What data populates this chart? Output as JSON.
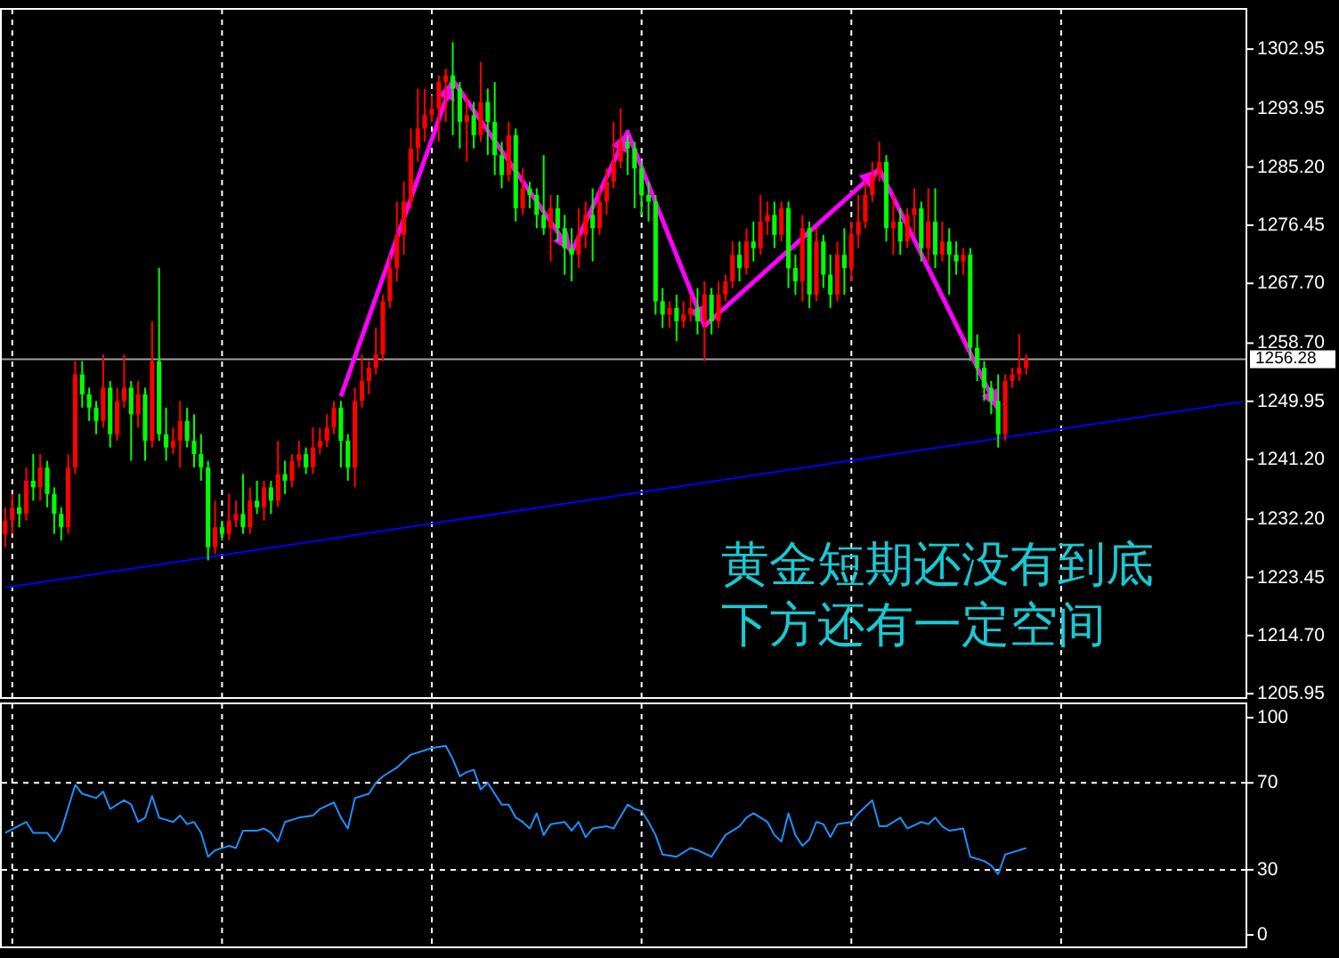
{
  "chart_data": [
    {
      "type": "candlestick",
      "categories": [
        null,
        null,
        null,
        null,
        null,
        null,
        null,
        null,
        null,
        null,
        null,
        null,
        null,
        null,
        null,
        null,
        null,
        null,
        null,
        null,
        null,
        null,
        null,
        null,
        null,
        null,
        null,
        null,
        null,
        null,
        null,
        null,
        null,
        null,
        null,
        null,
        null,
        null,
        null,
        null,
        null,
        null,
        null,
        null,
        null,
        null,
        null,
        null,
        null,
        null,
        null,
        null,
        null,
        null,
        null,
        null,
        null,
        null,
        null,
        null,
        null,
        null,
        null,
        null,
        null,
        null,
        null,
        null,
        null,
        null,
        null,
        null,
        null,
        null,
        null,
        null,
        null,
        null,
        null,
        null,
        null,
        null,
        null,
        null,
        null,
        null,
        null,
        null,
        null,
        null,
        null,
        null,
        null,
        null,
        null,
        null,
        null,
        null,
        null,
        null,
        null,
        null,
        null,
        null,
        null,
        null,
        null,
        null,
        null,
        null,
        null,
        null,
        null,
        null,
        null,
        null,
        null,
        null,
        null,
        null,
        null,
        null,
        null,
        null,
        null,
        null,
        null,
        null,
        null,
        null,
        null,
        null,
        null,
        null,
        null,
        null,
        null,
        null,
        null,
        null,
        null,
        null,
        null,
        null,
        null,
        null,
        null,
        null,
        null,
        null,
        null,
        null,
        null,
        null,
        null,
        null,
        null,
        null,
        null,
        null,
        null,
        null,
        null,
        null,
        null,
        null,
        null,
        null,
        null,
        null,
        null,
        null,
        null,
        null,
        null,
        null,
        null,
        null
      ],
      "ohlc": [
        [
          1230,
          1234,
          1228,
          1232
        ],
        [
          1232,
          1236,
          1230,
          1234
        ],
        [
          1234,
          1236,
          1231,
          1233
        ],
        [
          1233,
          1240,
          1232,
          1238
        ],
        [
          1238,
          1242,
          1235,
          1237
        ],
        [
          1237,
          1242,
          1235,
          1240
        ],
        [
          1240,
          1241,
          1234,
          1236
        ],
        [
          1236,
          1237,
          1230,
          1233
        ],
        [
          1233,
          1234,
          1229,
          1231
        ],
        [
          1231,
          1242,
          1230,
          1240
        ],
        [
          1240,
          1256,
          1239,
          1254
        ],
        [
          1254,
          1256,
          1249,
          1251
        ],
        [
          1251,
          1252,
          1247,
          1249
        ],
        [
          1249,
          1250,
          1245,
          1247
        ],
        [
          1247,
          1257,
          1246,
          1252
        ],
        [
          1252,
          1253,
          1243,
          1245
        ],
        [
          1245,
          1252,
          1244,
          1250
        ],
        [
          1250,
          1257,
          1249,
          1252
        ],
        [
          1252,
          1253,
          1241,
          1248
        ],
        [
          1248,
          1253,
          1246,
          1251
        ],
        [
          1251,
          1252,
          1241,
          1244
        ],
        [
          1244,
          1262,
          1243,
          1256
        ],
        [
          1256,
          1270,
          1244,
          1245
        ],
        [
          1245,
          1249,
          1241,
          1243
        ],
        [
          1243,
          1246,
          1242,
          1244
        ],
        [
          1244,
          1250,
          1240,
          1247
        ],
        [
          1247,
          1249,
          1243,
          1244
        ],
        [
          1244,
          1248,
          1240,
          1242
        ],
        [
          1242,
          1245,
          1238,
          1240
        ],
        [
          1240,
          1241,
          1226,
          1228
        ],
        [
          1228,
          1235,
          1227,
          1231
        ],
        [
          1231,
          1232,
          1229,
          1230
        ],
        [
          1230,
          1236,
          1229,
          1232
        ],
        [
          1232,
          1235,
          1231,
          1233
        ],
        [
          1233,
          1239,
          1230,
          1231
        ],
        [
          1231,
          1237,
          1230,
          1235
        ],
        [
          1235,
          1238,
          1233,
          1234
        ],
        [
          1234,
          1238,
          1232,
          1237
        ],
        [
          1237,
          1238,
          1233,
          1235
        ],
        [
          1235,
          1244,
          1234,
          1239
        ],
        [
          1239,
          1241,
          1236,
          1238
        ],
        [
          1238,
          1242,
          1237,
          1241
        ],
        [
          1241,
          1244,
          1240,
          1242
        ],
        [
          1242,
          1243,
          1239,
          1240
        ],
        [
          1240,
          1246,
          1239,
          1243
        ],
        [
          1243,
          1246,
          1242,
          1244
        ],
        [
          1244,
          1248,
          1243,
          1246
        ],
        [
          1246,
          1250,
          1245,
          1249
        ],
        [
          1249,
          1250,
          1240,
          1244
        ],
        [
          1244,
          1245,
          1238,
          1240
        ],
        [
          1240,
          1252,
          1237,
          1250
        ],
        [
          1250,
          1257,
          1249,
          1253
        ],
        [
          1253,
          1256,
          1251,
          1255
        ],
        [
          1255,
          1261,
          1254,
          1257
        ],
        [
          1257,
          1266,
          1256,
          1265
        ],
        [
          1265,
          1272,
          1264,
          1270
        ],
        [
          1270,
          1280,
          1268,
          1275
        ],
        [
          1275,
          1283,
          1272,
          1280
        ],
        [
          1280,
          1291,
          1279,
          1288
        ],
        [
          1288,
          1297,
          1286,
          1291
        ],
        [
          1291,
          1297,
          1289,
          1293
        ],
        [
          1293,
          1296,
          1292,
          1294
        ],
        [
          1294,
          1299,
          1289,
          1298
        ],
        [
          1298,
          1300,
          1292,
          1299
        ],
        [
          1299,
          1304,
          1290,
          1297
        ],
        [
          1297,
          1298,
          1288,
          1292
        ],
        [
          1292,
          1296,
          1286,
          1293
        ],
        [
          1293,
          1295,
          1288,
          1290
        ],
        [
          1290,
          1301,
          1289,
          1295
        ],
        [
          1295,
          1297,
          1287,
          1292
        ],
        [
          1292,
          1298,
          1284,
          1287
        ],
        [
          1287,
          1289,
          1282,
          1284
        ],
        [
          1284,
          1292,
          1283,
          1290
        ],
        [
          1290,
          1291,
          1277,
          1279
        ],
        [
          1279,
          1285,
          1278,
          1282
        ],
        [
          1282,
          1283,
          1279,
          1281
        ],
        [
          1281,
          1282,
          1276,
          1278
        ],
        [
          1278,
          1287,
          1275,
          1276
        ],
        [
          1276,
          1281,
          1271,
          1279
        ],
        [
          1279,
          1281,
          1274,
          1276
        ],
        [
          1276,
          1278,
          1269,
          1273
        ],
        [
          1273,
          1276,
          1268,
          1272
        ],
        [
          1272,
          1279,
          1270,
          1275
        ],
        [
          1275,
          1280,
          1273,
          1278
        ],
        [
          1278,
          1282,
          1271,
          1276
        ],
        [
          1276,
          1282,
          1275,
          1280
        ],
        [
          1280,
          1285,
          1278,
          1283
        ],
        [
          1283,
          1292,
          1282,
          1286
        ],
        [
          1286,
          1294,
          1285,
          1289
        ],
        [
          1289,
          1290,
          1284,
          1288
        ],
        [
          1288,
          1289,
          1279,
          1285
        ],
        [
          1285,
          1286,
          1278,
          1281
        ],
        [
          1281,
          1283,
          1277,
          1280
        ],
        [
          1280,
          1281,
          1263,
          1265
        ],
        [
          1265,
          1267,
          1261,
          1263
        ],
        [
          1263,
          1265,
          1261,
          1264
        ],
        [
          1264,
          1266,
          1259,
          1262
        ],
        [
          1262,
          1265,
          1261,
          1263
        ],
        [
          1263,
          1266,
          1262,
          1264
        ],
        [
          1264,
          1267,
          1260,
          1262
        ],
        [
          1262,
          1268,
          1256,
          1266
        ],
        [
          1266,
          1267,
          1260,
          1262
        ],
        [
          1262,
          1268,
          1261,
          1266
        ],
        [
          1266,
          1269,
          1265,
          1268
        ],
        [
          1268,
          1274,
          1267,
          1272
        ],
        [
          1272,
          1274,
          1268,
          1270
        ],
        [
          1270,
          1276,
          1269,
          1274
        ],
        [
          1274,
          1277,
          1271,
          1273
        ],
        [
          1273,
          1281,
          1272,
          1277
        ],
        [
          1277,
          1280,
          1275,
          1278
        ],
        [
          1278,
          1280,
          1273,
          1275
        ],
        [
          1275,
          1280,
          1274,
          1279
        ],
        [
          1279,
          1280,
          1267,
          1270
        ],
        [
          1270,
          1272,
          1266,
          1268
        ],
        [
          1268,
          1278,
          1265,
          1276
        ],
        [
          1276,
          1277,
          1264,
          1266
        ],
        [
          1266,
          1276,
          1265,
          1274
        ],
        [
          1274,
          1275,
          1267,
          1269
        ],
        [
          1269,
          1272,
          1264,
          1266
        ],
        [
          1266,
          1274,
          1265,
          1272
        ],
        [
          1272,
          1276,
          1266,
          1270
        ],
        [
          1270,
          1277,
          1268,
          1275
        ],
        [
          1275,
          1281,
          1273,
          1277
        ],
        [
          1277,
          1283,
          1276,
          1281
        ],
        [
          1281,
          1286,
          1280,
          1284
        ],
        [
          1284,
          1289,
          1283,
          1286
        ],
        [
          1286,
          1287,
          1274,
          1276
        ],
        [
          1276,
          1281,
          1272,
          1277
        ],
        [
          1277,
          1279,
          1272,
          1274
        ],
        [
          1274,
          1279,
          1273,
          1278
        ],
        [
          1278,
          1282,
          1275,
          1279
        ],
        [
          1279,
          1280,
          1271,
          1273
        ],
        [
          1273,
          1282,
          1271,
          1277
        ],
        [
          1277,
          1282,
          1270,
          1272
        ],
        [
          1272,
          1277,
          1271,
          1274
        ],
        [
          1274,
          1276,
          1266,
          1272
        ],
        [
          1272,
          1274,
          1269,
          1271
        ],
        [
          1271,
          1273,
          1269,
          1272
        ],
        [
          1272,
          1273,
          1256,
          1258
        ],
        [
          1258,
          1260,
          1253,
          1255
        ],
        [
          1255,
          1256,
          1250,
          1252
        ],
        [
          1252,
          1253,
          1248,
          1250
        ],
        [
          1250,
          1254,
          1243,
          1245
        ],
        [
          1245,
          1254,
          1244,
          1253
        ],
        [
          1253,
          1255,
          1252,
          1254
        ],
        [
          1254,
          1260,
          1253,
          1255
        ],
        [
          1255,
          1257,
          1254,
          1256.28
        ],
        null,
        null,
        null,
        null,
        null,
        null,
        null,
        null,
        null,
        null,
        null,
        null,
        null,
        null,
        null,
        null,
        null,
        null,
        null,
        null,
        null,
        null,
        null,
        null,
        null,
        null,
        null,
        null,
        null,
        null,
        null
      ],
      "colors": [
        "#ff0000",
        "#ff0000",
        "#00ff00",
        "#ff0000",
        "#00ff00",
        "#ff0000",
        "#00ff00",
        "#00ff00",
        "#00ff00",
        "#ff0000",
        "#ff0000",
        "#00ff00",
        "#00ff00",
        "#00ff00",
        "#ff0000",
        "#00ff00",
        "#ff0000",
        "#ff0000",
        "#00ff00",
        "#ff0000",
        "#00ff00",
        "#ff0000",
        "#00ff00",
        "#00ff00",
        "#ff0000",
        "#ff0000",
        "#00ff00",
        "#00ff00",
        "#00ff00",
        "#00ff00",
        "#ff0000",
        "#00ff00",
        "#ff0000",
        "#ff0000",
        "#00ff00",
        "#ff0000",
        "#00ff00",
        "#ff0000",
        "#00ff00",
        "#ff0000",
        "#00ff00",
        "#ff0000",
        "#ff0000",
        "#00ff00",
        "#ff0000",
        "#ff0000",
        "#ff0000",
        "#ff0000",
        "#00ff00",
        "#00ff00",
        "#ff0000",
        "#ff0000",
        "#ff0000",
        "#ff0000",
        "#ff0000",
        "#ff0000",
        "#ff0000",
        "#ff0000",
        "#ff0000",
        "#ff0000",
        "#ff0000",
        "#ff0000",
        "#ff0000",
        "#ff0000",
        "#00ff00",
        "#00ff00",
        "#ff0000",
        "#00ff00",
        "#ff0000",
        "#00ff00",
        "#00ff00",
        "#00ff00",
        "#ff0000",
        "#00ff00",
        "#ff0000",
        "#00ff00",
        "#00ff00",
        "#00ff00",
        "#ff0000",
        "#00ff00",
        "#00ff00",
        "#00ff00",
        "#ff0000",
        "#ff0000",
        "#00ff00",
        "#ff0000",
        "#ff0000",
        "#ff0000",
        "#ff0000",
        "#00ff00",
        "#00ff00",
        "#00ff00",
        "#00ff00",
        "#00ff00",
        "#00ff00",
        "#ff0000",
        "#00ff00",
        "#ff0000",
        "#ff0000",
        "#00ff00",
        "#ff0000",
        "#00ff00",
        "#ff0000",
        "#ff0000",
        "#ff0000",
        "#00ff00",
        "#ff0000",
        "#00ff00",
        "#ff0000",
        "#ff0000",
        "#00ff00",
        "#ff0000",
        "#00ff00",
        "#00ff00",
        "#ff0000",
        "#00ff00",
        "#ff0000",
        "#00ff00",
        "#00ff00",
        "#ff0000",
        "#00ff00",
        "#ff0000",
        "#ff0000",
        "#ff0000",
        "#ff0000",
        "#ff0000",
        "#00ff00",
        "#ff0000",
        "#00ff00",
        "#ff0000",
        "#ff0000",
        "#00ff00",
        "#ff0000",
        "#00ff00",
        "#ff0000",
        "#00ff00",
        "#00ff00",
        "#ff0000",
        "#00ff00",
        "#00ff00",
        "#00ff00",
        "#00ff00",
        "#00ff00",
        "#ff0000",
        "#ff0000",
        "#ff0000",
        "#ff0000",
        null,
        null,
        null,
        null,
        null,
        null,
        null,
        null,
        null,
        null,
        null,
        null,
        null,
        null,
        null,
        null,
        null,
        null,
        null,
        null,
        null,
        null,
        null,
        null,
        null,
        null,
        null,
        null,
        null,
        null,
        null
      ],
      "series": [
        {
          "type": "line",
          "color": "#0000ff",
          "values": [
            1221.9,
            null,
            null,
            null,
            null,
            null,
            null,
            null,
            null,
            null,
            null,
            null,
            null,
            null,
            null,
            null,
            null,
            null,
            null,
            null,
            null,
            null,
            null,
            null,
            null,
            null,
            null,
            null,
            null,
            null,
            null,
            null,
            null,
            null,
            null,
            null,
            null,
            null,
            null,
            null,
            null,
            null,
            null,
            null,
            null,
            null,
            null,
            null,
            null,
            null,
            null,
            null,
            null,
            null,
            null,
            null,
            null,
            null,
            null,
            null,
            null,
            null,
            null,
            null,
            null,
            null,
            null,
            null,
            null,
            null,
            null,
            null,
            null,
            null,
            null,
            null,
            null,
            null,
            null,
            null,
            null,
            null,
            null,
            null,
            null,
            null,
            null,
            null,
            null,
            null,
            null,
            null,
            null,
            null,
            null,
            null,
            null,
            null,
            null,
            null,
            null,
            null,
            null,
            null,
            null,
            null,
            null,
            null,
            null,
            null,
            null,
            null,
            null,
            null,
            null,
            null,
            null,
            null,
            null,
            null,
            null,
            null,
            null,
            null,
            null,
            null,
            null,
            null,
            null,
            null,
            null,
            null,
            null,
            null,
            null,
            null,
            null,
            null,
            null,
            null,
            null,
            null,
            null,
            null,
            null,
            null,
            null,
            null,
            null,
            null,
            null,
            null,
            null,
            null,
            null,
            null,
            null,
            null,
            null,
            null,
            null,
            null,
            null,
            null,
            null,
            null,
            null,
            null,
            null,
            null,
            null,
            null,
            null,
            null,
            null,
            null,
            null,
            1249.9
          ]
        },
        {
          "type": "line",
          "color": "#ff00ff",
          "values": [
            null,
            null,
            null,
            null,
            null,
            null,
            null,
            null,
            null,
            null,
            null,
            null,
            null,
            null,
            null,
            null,
            null,
            null,
            null,
            null,
            null,
            null,
            null,
            null,
            null,
            null,
            null,
            null,
            null,
            null,
            null,
            null,
            null,
            null,
            null,
            null,
            null,
            null,
            null,
            null,
            null,
            null,
            null,
            null,
            null,
            null,
            null,
            null,
            1250.7,
            null,
            null,
            null,
            null,
            null,
            null,
            null,
            null,
            null,
            null,
            null,
            null,
            null,
            null,
            null,
            1298.3,
            null,
            null,
            null,
            null,
            null,
            null,
            null,
            null,
            null,
            null,
            null,
            null,
            null,
            null,
            null,
            null,
            1272.4,
            null,
            null,
            null,
            null,
            null,
            null,
            null,
            1290.5,
            null,
            null,
            null,
            null,
            null,
            null,
            null,
            null,
            null,
            null,
            1261.3,
            null,
            null,
            null,
            null,
            null,
            null,
            null,
            null,
            null,
            null,
            null,
            null,
            null,
            null,
            null,
            null,
            null,
            null,
            null,
            null,
            null,
            null,
            null,
            null,
            1284.9,
            null,
            null,
            null,
            null,
            null,
            null,
            null,
            null,
            null,
            null,
            null,
            null,
            null,
            null,
            null,
            null,
            1248.7,
            null,
            null,
            null,
            null,
            null,
            null,
            null,
            null,
            null,
            null,
            null,
            null,
            null,
            null,
            null,
            null,
            null,
            null,
            null,
            null,
            null,
            null,
            null,
            null,
            null,
            null,
            null,
            null,
            null,
            null,
            null,
            null,
            null,
            null,
            null
          ]
        }
      ],
      "ref_lines": [
        {
          "axis": "y",
          "value": 1256.28,
          "label": "1256.28",
          "color": "#a0a0a0"
        }
      ],
      "annotations": [
        "黄金短期还没有到底",
        "下方还有一定空间"
      ],
      "ylim": [
        1205.3,
        1309.0
      ],
      "yticks": [
        1302.95,
        1293.95,
        {
          "value": 1285.2,
          "label": "1285.20"
        },
        1276.45,
        {
          "value": 1267.7,
          "label": "1267.70"
        },
        {
          "value": 1258.7,
          "label": "1258.70"
        },
        1249.95,
        {
          "value": 1241.2,
          "label": "1241.20"
        },
        {
          "value": 1232.2,
          "label": "1232.20"
        },
        1223.45,
        {
          "value": 1214.7,
          "label": "1214.70"
        },
        1205.95
      ],
      "grid": "x"
    },
    {
      "type": "line",
      "categories": [
        null,
        null,
        null,
        null,
        null,
        null,
        null,
        null,
        null,
        null,
        null,
        null,
        null,
        null,
        null,
        null,
        null,
        null,
        null,
        null,
        null,
        null,
        null,
        null,
        null,
        null,
        null,
        null,
        null,
        null,
        null,
        null,
        null,
        null,
        null,
        null,
        null,
        null,
        null,
        null,
        null,
        null,
        null,
        null,
        null,
        null,
        null,
        null,
        null,
        null,
        null,
        null,
        null,
        null,
        null,
        null,
        null,
        null,
        null,
        null,
        null,
        null,
        null,
        null,
        null,
        null,
        null,
        null,
        null,
        null,
        null,
        null,
        null,
        null,
        null,
        null,
        null,
        null,
        null,
        null,
        null,
        null,
        null,
        null,
        null,
        null,
        null,
        null,
        null,
        null,
        null,
        null,
        null,
        null,
        null,
        null,
        null,
        null,
        null,
        null,
        null,
        null,
        null,
        null,
        null,
        null,
        null,
        null,
        null,
        null,
        null,
        null,
        null,
        null,
        null,
        null,
        null,
        null,
        null,
        null,
        null,
        null,
        null,
        null,
        null,
        null,
        null,
        null,
        null,
        null,
        null,
        null,
        null,
        null,
        null,
        null,
        null,
        null,
        null,
        null,
        null,
        null,
        null,
        null,
        null,
        null,
        null,
        null,
        null,
        null,
        null,
        null,
        null,
        null,
        null,
        null,
        null,
        null,
        null,
        null,
        null,
        null,
        null,
        null,
        null,
        null,
        null,
        null,
        null,
        null,
        null,
        null,
        null,
        null,
        null,
        null,
        null,
        null
      ],
      "series": [
        {
          "color": "#1e90ff",
          "values": [
            47,
            null,
            null,
            52,
            47,
            null,
            47,
            43,
            48,
            null,
            69,
            65,
            null,
            63,
            66,
            58,
            60,
            62,
            60,
            52,
            54,
            64,
            54,
            null,
            52,
            55,
            51,
            52,
            47,
            36,
            39,
            null,
            41,
            40,
            48,
            null,
            48,
            49,
            47,
            43,
            52,
            null,
            54,
            null,
            55,
            58,
            null,
            61,
            54,
            49,
            63,
            null,
            65,
            70,
            73,
            null,
            77,
            null,
            83,
            null,
            null,
            86,
            null,
            87,
            81,
            73,
            75,
            76,
            67,
            70,
            null,
            60,
            60,
            54,
            52,
            49,
            56,
            46,
            51,
            null,
            52,
            48,
            52,
            45,
            49,
            null,
            50,
            49,
            null,
            60,
            58,
            57,
            52,
            46,
            37,
            null,
            36,
            null,
            40,
            39,
            null,
            36,
            41,
            46,
            null,
            50,
            54,
            56,
            null,
            52,
            46,
            43,
            56,
            46,
            41,
            44,
            52,
            51,
            45,
            51,
            null,
            52,
            56,
            null,
            62,
            50,
            50,
            null,
            54,
            49,
            null,
            52,
            51,
            54,
            50,
            48,
            null,
            49,
            36,
            null,
            34,
            32,
            28,
            37,
            38,
            null,
            40,
            null,
            null,
            null,
            null,
            null,
            null,
            null,
            null,
            null,
            null,
            null,
            null,
            null,
            null,
            null,
            null,
            null,
            null,
            null,
            null,
            null,
            null,
            null,
            null,
            null,
            null,
            null,
            null,
            null,
            null,
            null
          ]
        }
      ],
      "ylim": [
        -5.7,
        106.6
      ],
      "yticks": [
        100,
        70,
        30,
        0
      ],
      "grid": true
    }
  ]
}
